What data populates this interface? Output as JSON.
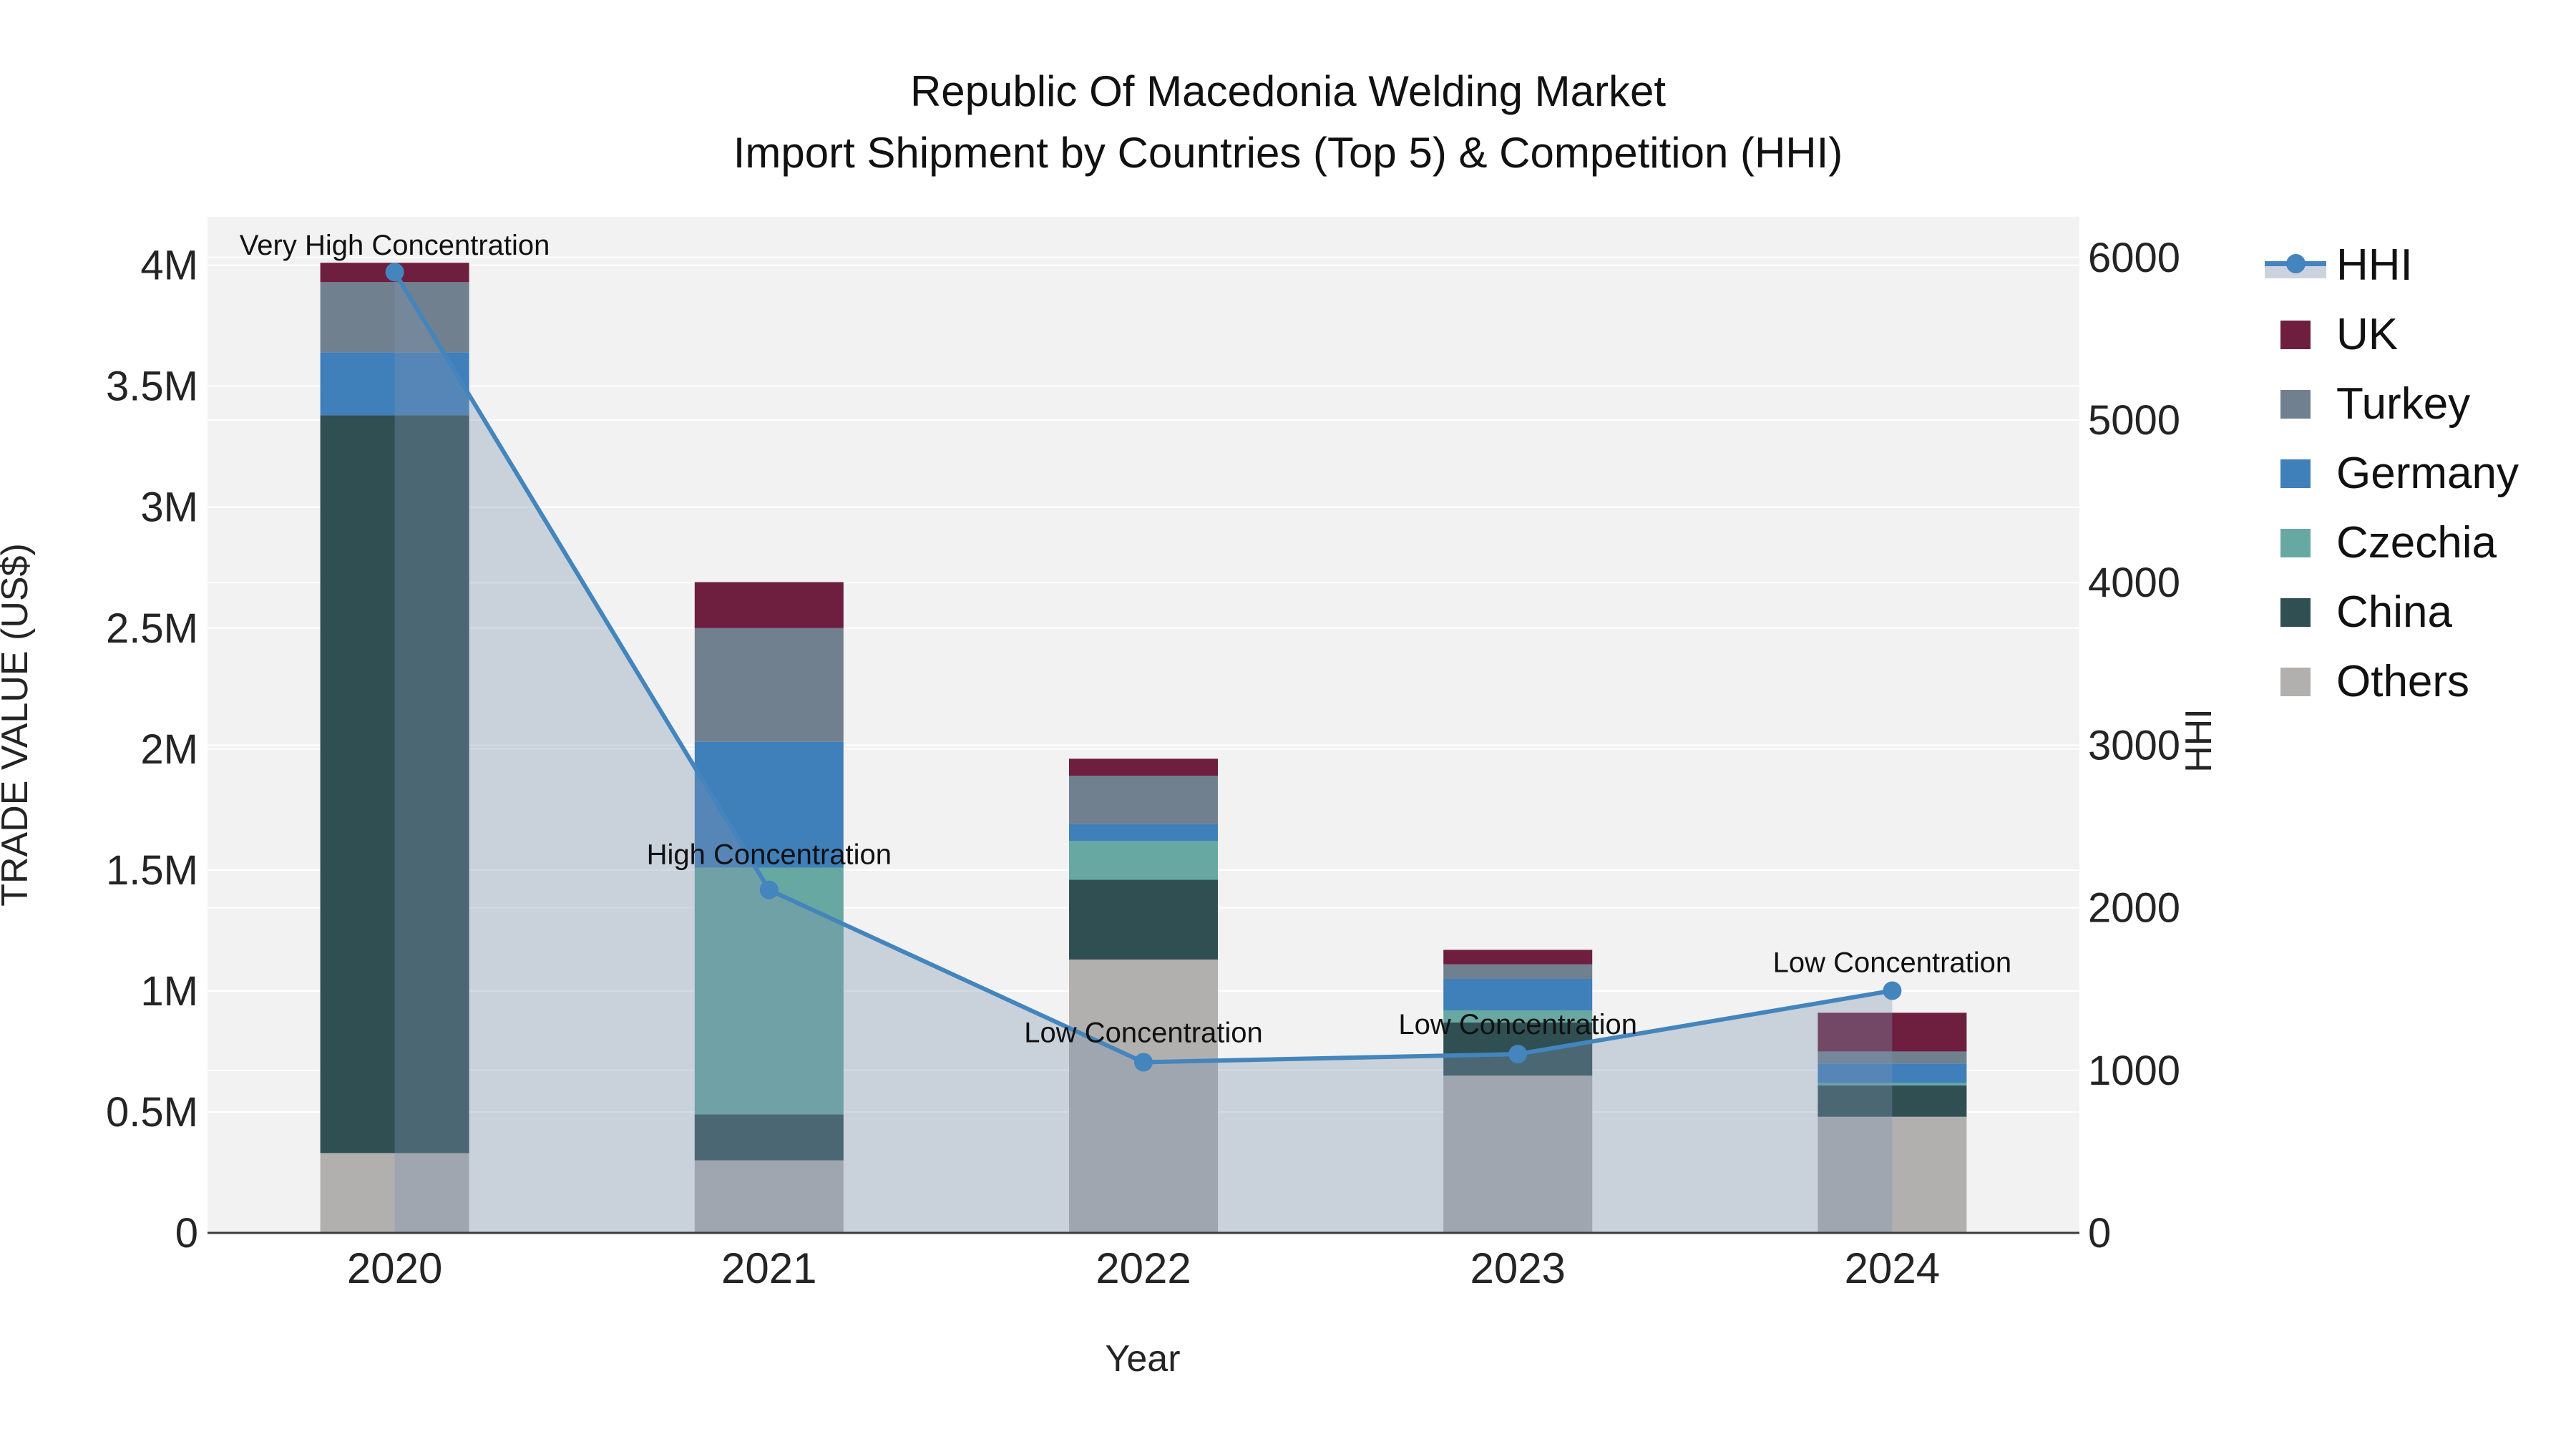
{
  "title": {
    "line1": "Republic Of Macedonia Welding Market",
    "line2": "Import Shipment by Countries (Top 5) & Competition (HHI)"
  },
  "axes": {
    "x": {
      "title": "Year",
      "categories": [
        "2020",
        "2021",
        "2022",
        "2023",
        "2024"
      ]
    },
    "y_left": {
      "title": "TRADE VALUE (US$)",
      "max": 4.2,
      "ticks": [
        {
          "label": "0",
          "value": 0
        },
        {
          "label": "0.5M",
          "value": 0.5
        },
        {
          "label": "1M",
          "value": 1
        },
        {
          "label": "1.5M",
          "value": 1.5
        },
        {
          "label": "2M",
          "value": 2
        },
        {
          "label": "2.5M",
          "value": 2.5
        },
        {
          "label": "3M",
          "value": 3
        },
        {
          "label": "3.5M",
          "value": 3.5
        },
        {
          "label": "4M",
          "value": 4
        }
      ]
    },
    "y_right": {
      "title": "HHI",
      "max": 6250,
      "ticks": [
        {
          "label": "0",
          "value": 0
        },
        {
          "label": "1000",
          "value": 1000
        },
        {
          "label": "2000",
          "value": 2000
        },
        {
          "label": "3000",
          "value": 3000
        },
        {
          "label": "4000",
          "value": 4000
        },
        {
          "label": "5000",
          "value": 5000
        },
        {
          "label": "6000",
          "value": 6000
        }
      ]
    }
  },
  "legend": [
    {
      "label": "HHI",
      "type": "line",
      "color": "#4385bc"
    },
    {
      "label": "UK",
      "type": "swatch",
      "color": "#6e1e3e"
    },
    {
      "label": "Turkey",
      "type": "swatch",
      "color": "#71808f"
    },
    {
      "label": "Germany",
      "type": "swatch",
      "color": "#3f7fba"
    },
    {
      "label": "Czechia",
      "type": "swatch",
      "color": "#67a8a2"
    },
    {
      "label": "China",
      "type": "swatch",
      "color": "#2f4f52"
    },
    {
      "label": "Others",
      "type": "swatch",
      "color": "#b1b0af"
    }
  ],
  "chart_data": [
    {
      "type": "bar",
      "stacked": true,
      "unit": "million US$",
      "title": "Import shipment trade value by country",
      "categories": [
        "2020",
        "2021",
        "2022",
        "2023",
        "2024"
      ],
      "ylim": [
        0,
        4.2
      ],
      "series": [
        {
          "name": "Others",
          "color": "#b1b0af",
          "values": [
            0.33,
            0.3,
            1.13,
            0.65,
            0.48
          ]
        },
        {
          "name": "China",
          "color": "#2f4f52",
          "values": [
            3.05,
            0.19,
            0.33,
            0.22,
            0.13
          ]
        },
        {
          "name": "Czechia",
          "color": "#67a8a2",
          "values": [
            0.0,
            1.02,
            0.16,
            0.05,
            0.01
          ]
        },
        {
          "name": "Germany",
          "color": "#3f7fba",
          "values": [
            0.26,
            0.52,
            0.07,
            0.13,
            0.08
          ]
        },
        {
          "name": "Turkey",
          "color": "#71808f",
          "values": [
            0.29,
            0.47,
            0.2,
            0.06,
            0.05
          ]
        },
        {
          "name": "UK",
          "color": "#6e1e3e",
          "values": [
            0.08,
            0.19,
            0.07,
            0.06,
            0.16
          ]
        }
      ]
    },
    {
      "type": "line",
      "name": "HHI",
      "color": "#4385bc",
      "area_fill": "rgba(125,148,178,0.35)",
      "categories": [
        "2020",
        "2021",
        "2022",
        "2023",
        "2024"
      ],
      "values": [
        5910,
        2110,
        1050,
        1100,
        1490
      ],
      "ylim": [
        0,
        6250
      ],
      "annotations": [
        {
          "text": "Very High Concentration",
          "dy": -38
        },
        {
          "text": "High Concentration",
          "dy": -50
        },
        {
          "text": "Low Concentration",
          "dy": -42
        },
        {
          "text": "Low Concentration",
          "dy": -42
        },
        {
          "text": "Low Concentration",
          "dy": -40
        }
      ]
    }
  ],
  "style_colors": {
    "plot_background": "#f2f2f2",
    "grid": "#ffffff",
    "axis_line": "#3b3b3b",
    "legend_band": "#cdd3de"
  }
}
